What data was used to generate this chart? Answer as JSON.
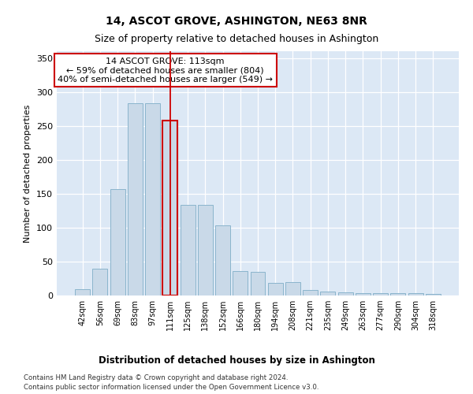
{
  "title": "14, ASCOT GROVE, ASHINGTON, NE63 8NR",
  "subtitle": "Size of property relative to detached houses in Ashington",
  "xlabel": "Distribution of detached houses by size in Ashington",
  "ylabel": "Number of detached properties",
  "categories": [
    "42sqm",
    "56sqm",
    "69sqm",
    "83sqm",
    "97sqm",
    "111sqm",
    "125sqm",
    "138sqm",
    "152sqm",
    "166sqm",
    "180sqm",
    "194sqm",
    "208sqm",
    "221sqm",
    "235sqm",
    "249sqm",
    "263sqm",
    "277sqm",
    "290sqm",
    "304sqm",
    "318sqm"
  ],
  "values": [
    9,
    40,
    157,
    283,
    283,
    258,
    133,
    133,
    103,
    36,
    35,
    19,
    20,
    8,
    6,
    5,
    4,
    4,
    3,
    3,
    2
  ],
  "bar_color": "#c9d9e8",
  "bar_edge_color": "#8ab4cc",
  "highlight_bar_index": 5,
  "vline_color": "#cc0000",
  "annotation_text": "14 ASCOT GROVE: 113sqm\n← 59% of detached houses are smaller (804)\n40% of semi-detached houses are larger (549) →",
  "annotation_box_facecolor": "#ffffff",
  "annotation_box_edgecolor": "#cc0000",
  "ylim": [
    0,
    360
  ],
  "yticks": [
    0,
    50,
    100,
    150,
    200,
    250,
    300,
    350
  ],
  "footer_line1": "Contains HM Land Registry data © Crown copyright and database right 2024.",
  "footer_line2": "Contains public sector information licensed under the Open Government Licence v3.0.",
  "fig_facecolor": "#ffffff",
  "plot_bg_color": "#dce8f5",
  "grid_color": "#ffffff",
  "title_fontsize": 10,
  "subtitle_fontsize": 9
}
